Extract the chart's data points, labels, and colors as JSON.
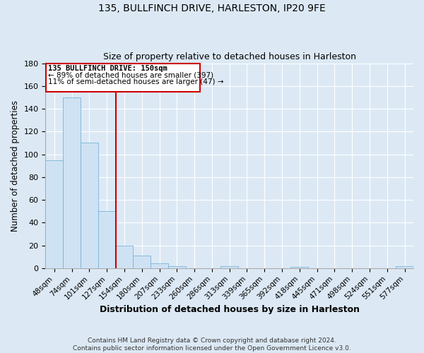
{
  "title": "135, BULLFINCH DRIVE, HARLESTON, IP20 9FE",
  "subtitle": "Size of property relative to detached houses in Harleston",
  "xlabel": "Distribution of detached houses by size in Harleston",
  "ylabel": "Number of detached properties",
  "bar_labels": [
    "48sqm",
    "74sqm",
    "101sqm",
    "127sqm",
    "154sqm",
    "180sqm",
    "207sqm",
    "233sqm",
    "260sqm",
    "286sqm",
    "313sqm",
    "339sqm",
    "365sqm",
    "392sqm",
    "418sqm",
    "445sqm",
    "471sqm",
    "498sqm",
    "524sqm",
    "551sqm",
    "577sqm"
  ],
  "bar_values": [
    95,
    150,
    110,
    50,
    20,
    11,
    4,
    2,
    0,
    0,
    2,
    0,
    0,
    0,
    1,
    0,
    0,
    0,
    0,
    0,
    2
  ],
  "bar_color": "#cfe2f3",
  "bar_edge_color": "#7ab3d8",
  "vline_index": 4,
  "vline_color": "#cc0000",
  "box_edge_color": "#cc0000",
  "annotation_title": "135 BULLFINCH DRIVE: 150sqm",
  "annotation_line1": "← 89% of detached houses are smaller (397)",
  "annotation_line2": "11% of semi-detached houses are larger (47) →",
  "ylim": [
    0,
    180
  ],
  "yticks": [
    0,
    20,
    40,
    60,
    80,
    100,
    120,
    140,
    160,
    180
  ],
  "background_color": "#dce9f5",
  "plot_bg_color": "#dce9f5",
  "footer_line1": "Contains HM Land Registry data © Crown copyright and database right 2024.",
  "footer_line2": "Contains public sector information licensed under the Open Government Licence v3.0."
}
